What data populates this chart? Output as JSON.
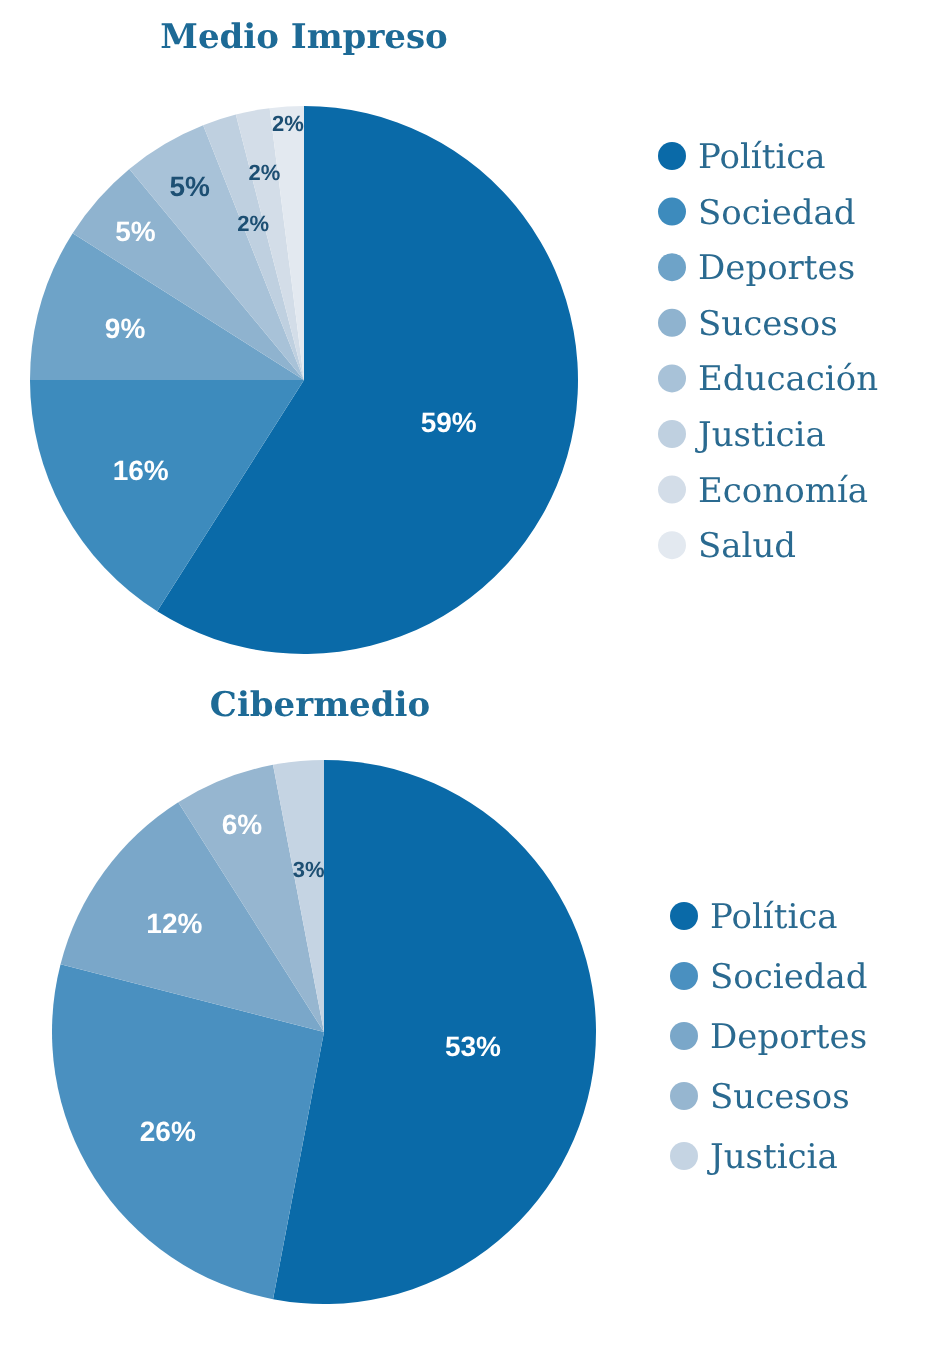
{
  "chart_data": [
    {
      "type": "pie",
      "title": "Medio Impreso",
      "categories": [
        "Política",
        "Sociedad",
        "Deportes",
        "Sucesos",
        "Educación",
        "Justicia",
        "Economía",
        "Salud"
      ],
      "values": [
        59,
        16,
        9,
        5,
        5,
        2,
        2,
        2
      ],
      "value_labels": [
        "59%",
        "16%",
        "9%",
        "5%",
        "5%",
        "2%",
        "2%",
        "2%"
      ],
      "colors": [
        "#0a6aa8",
        "#3d8bbd",
        "#6ea3c8",
        "#8fb3cf",
        "#a8c2d8",
        "#bfd0e0",
        "#d3dde8",
        "#e3e9f0"
      ],
      "legend": "right"
    },
    {
      "type": "pie",
      "title": "Cibermedio",
      "categories": [
        "Política",
        "Sociedad",
        "Deportes",
        "Sucesos",
        "Justicia"
      ],
      "values": [
        53,
        26,
        12,
        6,
        3
      ],
      "value_labels": [
        "53%",
        "26%",
        "12%",
        "6%",
        "3%"
      ],
      "colors": [
        "#0a6aa8",
        "#4a90c0",
        "#7aa7c9",
        "#96b6d0",
        "#c5d4e3"
      ],
      "legend": "right"
    }
  ]
}
